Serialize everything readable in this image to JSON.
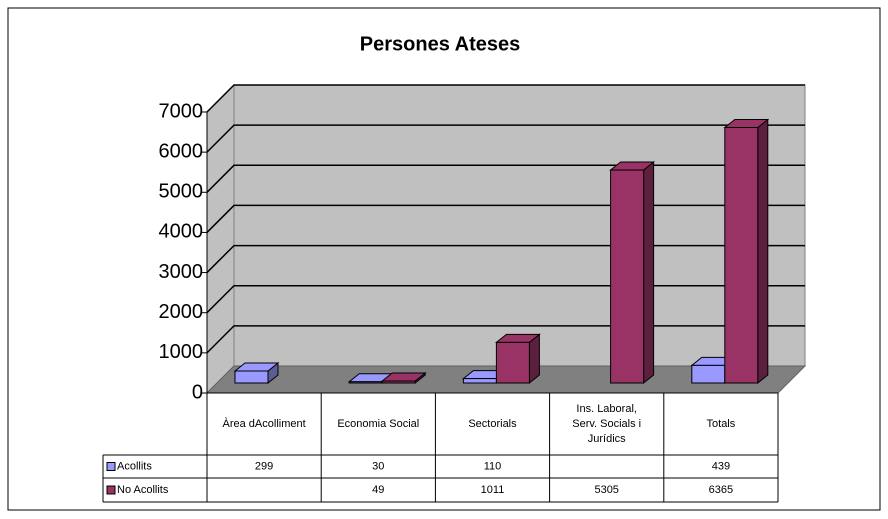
{
  "chart_data": {
    "type": "bar3d",
    "title": "Persones Ateses",
    "categories": [
      "Àrea dAcolliment",
      "Economia Social",
      "Sectorials",
      "Ins. Laboral, Serv. Socials i Jurídics",
      "Totals"
    ],
    "series": [
      {
        "name": "Acollits",
        "color": "#9999ff",
        "values": [
          299,
          30,
          110,
          null,
          439
        ]
      },
      {
        "name": "No Acollits",
        "color": "#993366",
        "values": [
          null,
          49,
          1011,
          5305,
          6365
        ]
      }
    ],
    "ylim": [
      0,
      7000
    ],
    "yticks": [
      0,
      1000,
      2000,
      3000,
      4000,
      5000,
      6000,
      7000
    ],
    "grid": true
  }
}
